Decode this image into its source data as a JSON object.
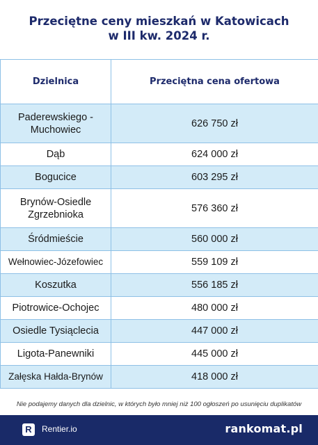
{
  "title": {
    "line1": "Przeciętne ceny mieszkań w Katowicach",
    "line2": "w III kw. 2024 r."
  },
  "table": {
    "headers": [
      "Dzielnica",
      "Przeciętna cena ofertowa"
    ],
    "rows": [
      {
        "district": "Paderewskiego - Muchowiec",
        "price": "626 750 zł"
      },
      {
        "district": "Dąb",
        "price": "624 000 zł"
      },
      {
        "district": "Bogucice",
        "price": "603 295 zł"
      },
      {
        "district": "Brynów-Osiedle Zgrzebnioka",
        "price": "576 360 zł"
      },
      {
        "district": "Śródmieście",
        "price": "560 000 zł"
      },
      {
        "district": "Wełnowiec-Józefowiec",
        "price": "559 109 zł"
      },
      {
        "district": "Koszutka",
        "price": "556 185 zł"
      },
      {
        "district": "Piotrowice-Ochojec",
        "price": "480 000 zł"
      },
      {
        "district": "Osiedle Tysiąclecia",
        "price": "447 000 zł"
      },
      {
        "district": "Ligota-Panewniki",
        "price": "445 000 zł"
      },
      {
        "district": "Załęska Hałda-Brynów",
        "price": "418 000 zł"
      }
    ]
  },
  "note": "Nie podajemy danych dla dzielnic, w których było mniej niż 100 ogłoszeń po usunięciu duplikatów",
  "footer": {
    "rentier_icon": "R",
    "rentier_label": "Rentier.io",
    "rankomat_label": "rankomat.pl"
  },
  "colors": {
    "title": "#1d2a6b",
    "row_shade": "#d3ebf8",
    "border": "#8ec0e6",
    "footer_bg": "#192a68"
  }
}
